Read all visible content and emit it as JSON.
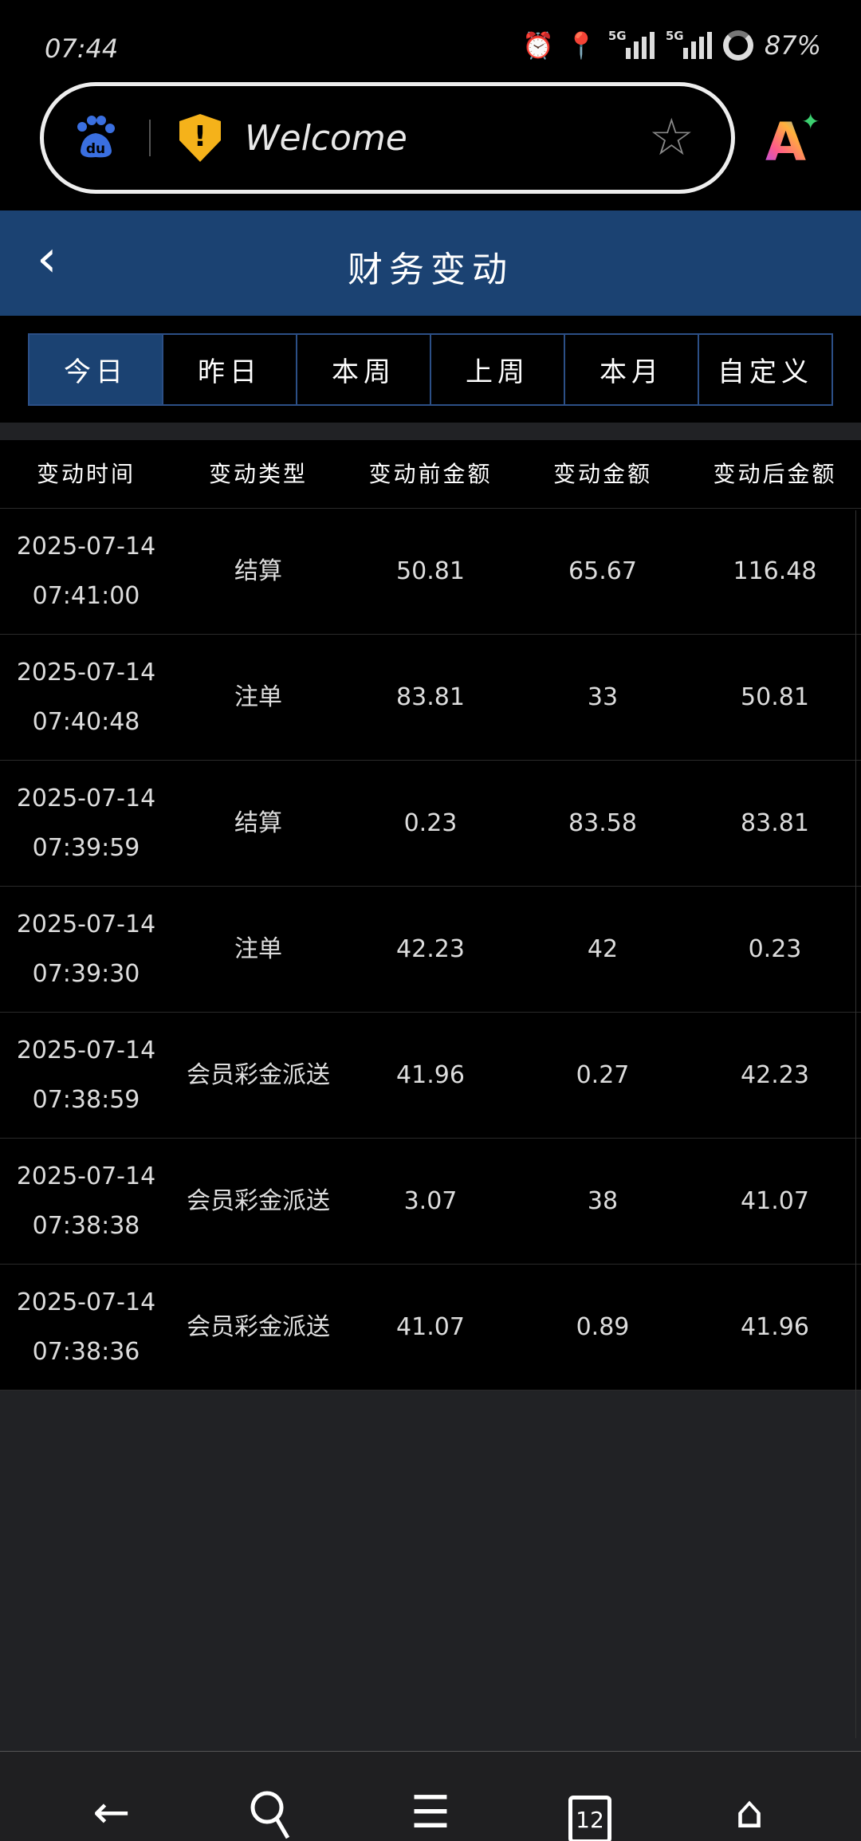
{
  "status_bar": {
    "time": "07:44",
    "network1": "5G",
    "network2": "5G",
    "battery": "87%"
  },
  "browser": {
    "address_text": "Welcome",
    "tab_count": "12",
    "icons": [
      "baidu-paw-icon",
      "security-warning-shield-icon",
      "bookmark-star-icon",
      "ai-assistant-icon"
    ]
  },
  "header": {
    "title": "财务变动",
    "back_icon": "chevron-left-icon",
    "color": "#1b4272"
  },
  "filters": {
    "tabs": [
      "今日",
      "昨日",
      "本周",
      "上周",
      "本月",
      "自定义"
    ],
    "active": "今日"
  },
  "table": {
    "columns": [
      "变动时间",
      "变动类型",
      "变动前金额",
      "变动金额",
      "变动后金额"
    ],
    "rows": [
      {
        "date": "2025-07-14",
        "time": "07:41:00",
        "type": "结算",
        "before": "50.81",
        "amount": "65.67",
        "after": "116.48"
      },
      {
        "date": "2025-07-14",
        "time": "07:40:48",
        "type": "注单",
        "before": "83.81",
        "amount": "33",
        "after": "50.81"
      },
      {
        "date": "2025-07-14",
        "time": "07:39:59",
        "type": "结算",
        "before": "0.23",
        "amount": "83.58",
        "after": "83.81"
      },
      {
        "date": "2025-07-14",
        "time": "07:39:30",
        "type": "注单",
        "before": "42.23",
        "amount": "42",
        "after": "0.23"
      },
      {
        "date": "2025-07-14",
        "time": "07:38:59",
        "type": "会员彩金派送",
        "before": "41.96",
        "amount": "0.27",
        "after": "42.23"
      },
      {
        "date": "2025-07-14",
        "time": "07:38:38",
        "type": "会员彩金派送",
        "before": "3.07",
        "amount": "38",
        "after": "41.07"
      },
      {
        "date": "2025-07-14",
        "time": "07:38:36",
        "type": "会员彩金派送",
        "before": "41.07",
        "amount": "0.89",
        "after": "41.96"
      }
    ]
  }
}
